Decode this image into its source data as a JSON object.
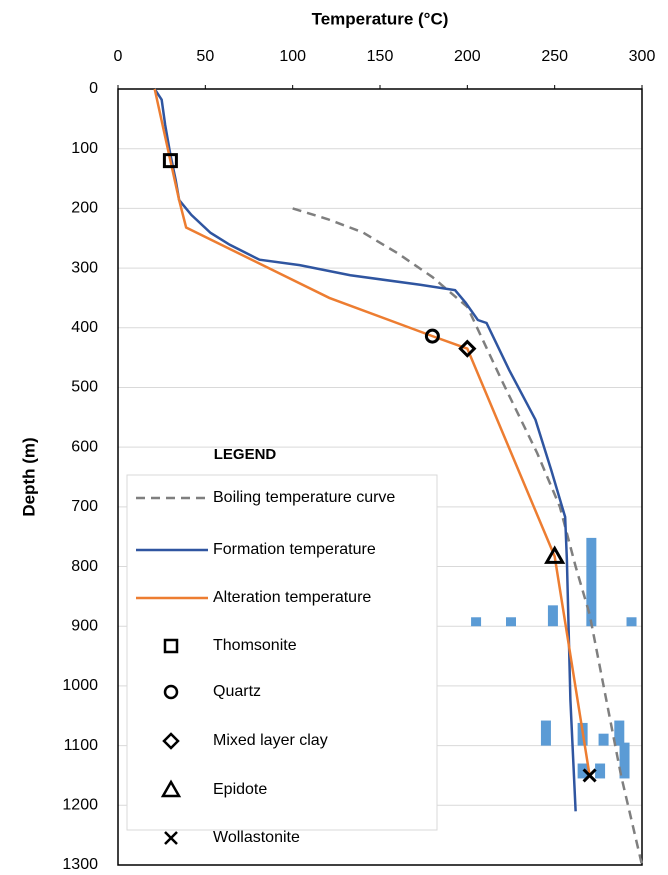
{
  "chart_data": {
    "type": "line",
    "x_label": "Temperature (°C)",
    "y_label": "Depth (m)",
    "xlim": [
      0,
      300
    ],
    "ylim": [
      0,
      1300
    ],
    "y_inverted": true,
    "xticks": [
      0,
      50,
      100,
      150,
      200,
      250,
      300
    ],
    "yticks": [
      0,
      100,
      200,
      300,
      400,
      500,
      600,
      700,
      800,
      900,
      1000,
      1100,
      1200,
      1300
    ],
    "grid": true,
    "legend_title": "LEGEND",
    "series": [
      {
        "name": "Boiling temperature curve",
        "color": "#7f7f7f",
        "dash": true,
        "x": [
          100,
          120,
          140,
          160,
          180,
          200,
          220,
          240,
          253,
          262,
          270,
          278,
          288,
          300
        ],
        "y": [
          200,
          218,
          240,
          275,
          315,
          365,
          490,
          610,
          700,
          800,
          880,
          1000,
          1150,
          1300
        ]
      },
      {
        "name": "Formation temperature",
        "color": "#2f55a0",
        "dash": false,
        "x": [
          21,
          25,
          27,
          30,
          33,
          35,
          42,
          53,
          64,
          81,
          104,
          133,
          173,
          193,
          199,
          206,
          211,
          224,
          239,
          248,
          256,
          257,
          259,
          262
        ],
        "y": [
          0,
          18,
          60,
          110,
          152,
          186,
          211,
          241,
          261,
          286,
          295,
          312,
          328,
          337,
          358,
          387,
          392,
          471,
          554,
          638,
          717,
          789,
          1023,
          1210
        ]
      },
      {
        "name": "Alteration temperature",
        "color": "#ed7d31",
        "dash": false,
        "x": [
          21,
          30,
          35,
          39,
          121,
          180,
          200,
          250,
          270
        ],
        "y": [
          0,
          120,
          186,
          232,
          350,
          414,
          435,
          783,
          1150
        ]
      },
      {
        "name": "Thomsonite",
        "marker": "square",
        "x": [
          30
        ],
        "y": [
          120
        ]
      },
      {
        "name": "Quartz",
        "marker": "circle",
        "x": [
          180
        ],
        "y": [
          414
        ]
      },
      {
        "name": "Mixed layer clay",
        "marker": "diamond",
        "x": [
          200
        ],
        "y": [
          435
        ]
      },
      {
        "name": "Epidote",
        "marker": "triangle",
        "x": [
          250
        ],
        "y": [
          783
        ]
      },
      {
        "name": "Wollastonite",
        "marker": "cross",
        "x": [
          270
        ],
        "y": [
          1150
        ]
      }
    ],
    "bars_color": "#5b9bd5",
    "bars": [
      {
        "x": 205,
        "top": 885,
        "base": 900
      },
      {
        "x": 225,
        "top": 885,
        "base": 900
      },
      {
        "x": 249,
        "top": 865,
        "base": 900
      },
      {
        "x": 271,
        "top": 752,
        "base": 900
      },
      {
        "x": 294,
        "top": 885,
        "base": 900
      },
      {
        "x": 245,
        "top": 1058,
        "base": 1100
      },
      {
        "x": 266,
        "top": 1062,
        "base": 1100
      },
      {
        "x": 278,
        "top": 1080,
        "base": 1100
      },
      {
        "x": 287,
        "top": 1058,
        "base": 1100
      },
      {
        "x": 266,
        "top": 1130,
        "base": 1155
      },
      {
        "x": 276,
        "top": 1130,
        "base": 1155
      },
      {
        "x": 290,
        "top": 1095,
        "base": 1155
      }
    ]
  }
}
